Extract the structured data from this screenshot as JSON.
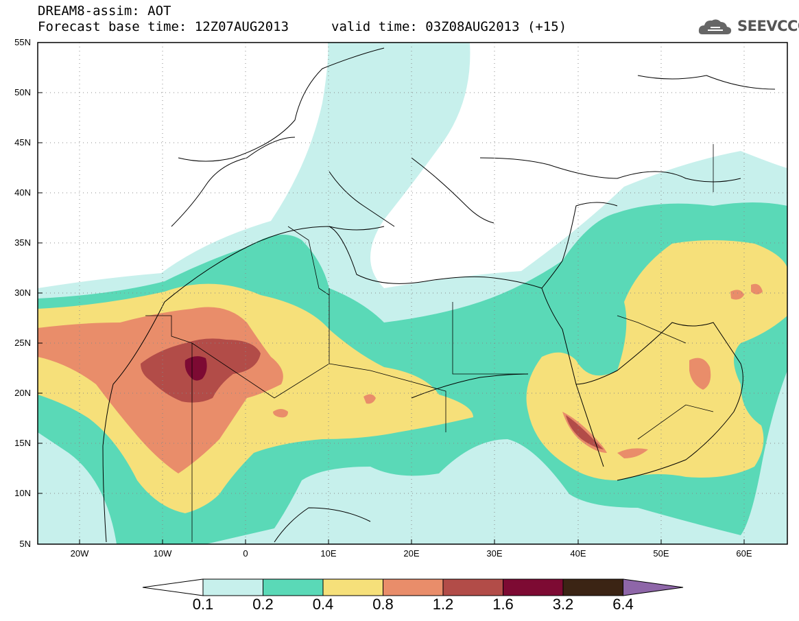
{
  "header": {
    "title_line1": "DREAM8-assim: AOT",
    "title_line2": "Forecast base time: 12Z07AUG2013",
    "valid_time": "valid time: 03Z08AUG2013 (+15)",
    "logo_text": "SEEVCCC"
  },
  "map": {
    "lat_labels": [
      "55N",
      "50N",
      "45N",
      "40N",
      "35N",
      "30N",
      "25N",
      "20N",
      "15N",
      "10N",
      "5N"
    ],
    "lon_labels": [
      "20W",
      "10W",
      "0",
      "10E",
      "20E",
      "30E",
      "40E",
      "50E",
      "60E"
    ],
    "extent": {
      "lon": [
        -25,
        65
      ],
      "lat": [
        5,
        55
      ]
    }
  },
  "colorbar": {
    "labels": [
      "0.1",
      "0.2",
      "0.4",
      "0.8",
      "1.2",
      "1.6",
      "3.2",
      "6.4"
    ],
    "colors": [
      "#ffffff",
      "#c7f0ec",
      "#5ad9b7",
      "#f6e07a",
      "#e98d6a",
      "#b24c48",
      "#7d0a33",
      "#3b2414",
      "#8e66a8"
    ]
  }
}
